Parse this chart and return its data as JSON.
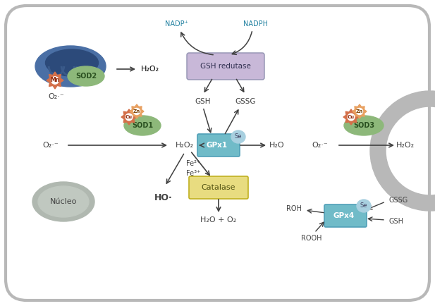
{
  "bg_color": "#ffffff",
  "fig_width": 6.17,
  "fig_height": 4.34,
  "dpi": 100,
  "colors": {
    "mito_blue": "#4a6fa5",
    "mito_dark": "#2c4a7a",
    "sod_green": "#8db87a",
    "sod_red": "#d4704a",
    "sod_orange": "#e8a060",
    "se_blue": "#a8d0e0",
    "gpx_teal": "#70bbc8",
    "gsh_reductase_purple": "#c8b8d8",
    "catalase_yellow": "#e8dc80",
    "nucleus_gray": "#b0b8b0",
    "nucleus_inner": "#c0c8c0",
    "arrow_color": "#404040",
    "text_color": "#404040",
    "teal_text": "#2080a0",
    "outer_border": "#b8b8b8"
  },
  "labels": {
    "h2o2": "H₂O₂",
    "h2o": "H₂O",
    "o2m": "O₂·⁻",
    "gsh": "GSH",
    "gssg": "GSSG",
    "nadp": "NADP⁺",
    "nadph": "NADPH",
    "gsh_reductase": "GSH redutase",
    "gpx1": "GPx1",
    "gpx4": "GPx4",
    "sod1": "SOD1",
    "sod2": "SOD2",
    "sod3": "SOD3",
    "catalase": "Catalase",
    "nucleo": "Núcleo",
    "ho": "HO·",
    "h2o_o2": "H₂O + O₂",
    "roh": "ROH",
    "rooh": "ROOH",
    "fe2": "Fe²⁺",
    "fe3": "Fe³⁺",
    "mn": "Mn",
    "cu": "Cu",
    "zn": "Zn",
    "se": "Se"
  }
}
